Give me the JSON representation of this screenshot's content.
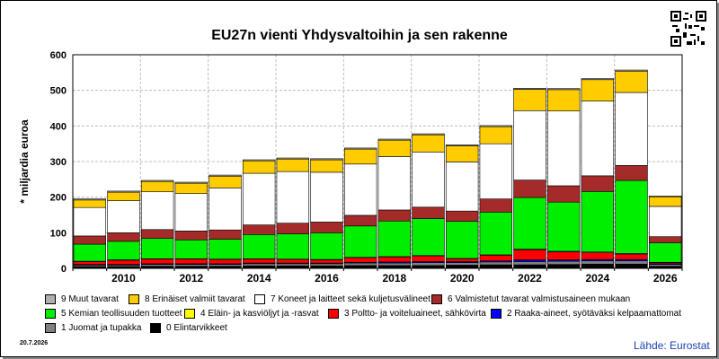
{
  "title": "EU27n vienti Yhdysvaltoihin ja sen rakenne",
  "ylabel": "* miljardia euroa",
  "date": "20.7.2026",
  "source": "Lähde: Eurostat",
  "chart_data": {
    "type": "bar",
    "stacked": true,
    "title": "EU27n vienti Yhdysvaltoihin ja sen rakenne",
    "ylabel": "* miljardia euroa",
    "ylim": [
      0,
      600
    ],
    "yticks": [
      0,
      100,
      200,
      300,
      400,
      500,
      600
    ],
    "categories": [
      "2009",
      "2010",
      "2011",
      "2012",
      "2013",
      "2014",
      "2015",
      "2016",
      "2017",
      "2018",
      "2019",
      "2020",
      "2021",
      "2022",
      "2023",
      "2024",
      "2025",
      "2026"
    ],
    "xtick_labels": [
      "2010",
      "2012",
      "2014",
      "2016",
      "2018",
      "2020",
      "2022",
      "2024",
      "2026"
    ],
    "grid": true,
    "series": [
      {
        "name": "0 Elintarvikkeet",
        "color": "#000000",
        "values": [
          5,
          5,
          6,
          6,
          6,
          7,
          7,
          7,
          8,
          8,
          8,
          9,
          10,
          10,
          11,
          12,
          12,
          6
        ]
      },
      {
        "name": "1 Juomat ja tupakka",
        "color": "#808080",
        "values": [
          4,
          4,
          5,
          5,
          5,
          6,
          6,
          6,
          7,
          7,
          8,
          7,
          8,
          9,
          9,
          9,
          9,
          5
        ]
      },
      {
        "name": "2 Raaka-aineet, syötäväksi kelpaamattomat",
        "color": "#0000ff",
        "values": [
          2,
          2,
          2,
          2,
          2,
          2,
          2,
          2,
          2,
          3,
          3,
          3,
          3,
          5,
          4,
          4,
          4,
          2
        ]
      },
      {
        "name": "3 Poltto- ja voiteluaineet, sähkövirta",
        "color": "#ff0000",
        "values": [
          8,
          12,
          13,
          13,
          12,
          11,
          10,
          9,
          13,
          14,
          16,
          8,
          16,
          28,
          22,
          19,
          15,
          3
        ]
      },
      {
        "name": "4 Eläin- ja kasviöljyt ja -rasvat",
        "color": "#ffff00",
        "values": [
          1,
          1,
          1,
          1,
          1,
          1,
          1,
          1,
          1,
          1,
          1,
          1,
          1,
          2,
          2,
          2,
          2,
          1
        ]
      },
      {
        "name": "5 Kemian teollisuuden tuotteet",
        "color": "#00ee00",
        "values": [
          48,
          52,
          57,
          53,
          56,
          68,
          71,
          75,
          88,
          100,
          104,
          104,
          120,
          145,
          138,
          170,
          205,
          55
        ]
      },
      {
        "name": "6 Valmistetut tavarat valmistusaineen mukaan",
        "color": "#a52a2a",
        "values": [
          23,
          24,
          25,
          25,
          26,
          27,
          30,
          30,
          30,
          31,
          32,
          29,
          37,
          49,
          46,
          44,
          42,
          17
        ]
      },
      {
        "name": "7 Koneet ja laitteet sekä kuljetusvälineet",
        "color": "#ffffff",
        "values": [
          80,
          90,
          106,
          105,
          118,
          145,
          145,
          140,
          144,
          150,
          155,
          138,
          155,
          195,
          210,
          210,
          205,
          85
        ]
      },
      {
        "name": "8 Erinäiset valmiit tavarat",
        "color": "#ffcc00",
        "values": [
          21,
          24,
          29,
          29,
          33,
          35,
          35,
          35,
          42,
          46,
          48,
          45,
          48,
          60,
          60,
          60,
          60,
          27
        ]
      },
      {
        "name": "9 Muut tavarat",
        "color": "#b0b0b0",
        "values": [
          3,
          3,
          3,
          3,
          3,
          3,
          3,
          3,
          3,
          3,
          3,
          3,
          3,
          3,
          3,
          3,
          3,
          2
        ]
      }
    ]
  },
  "legend": [
    {
      "label": "9 Muut tavarat",
      "color": "#b0b0b0"
    },
    {
      "label": "8 Erinäiset valmiit tavarat",
      "color": "#ffcc00"
    },
    {
      "label": "7 Koneet ja laitteet sekä kuljetusvälineet",
      "color": "#ffffff"
    },
    {
      "label": "6 Valmistetut tavarat valmistusaineen mukaan",
      "color": "#a52a2a"
    },
    {
      "label": "5 Kemian teollisuuden tuotteet",
      "color": "#00ee00"
    },
    {
      "label": "4 Eläin- ja kasviöljyt ja -rasvat",
      "color": "#ffff00"
    },
    {
      "label": "3 Poltto- ja voiteluaineet, sähkövirta",
      "color": "#ff0000"
    },
    {
      "label": "2 Raaka-aineet, syötäväksi kelpaamattomat",
      "color": "#0000ff"
    },
    {
      "label": "1 Juomat ja tupakka",
      "color": "#808080"
    },
    {
      "label": "0 Elintarvikkeet",
      "color": "#000000"
    }
  ]
}
